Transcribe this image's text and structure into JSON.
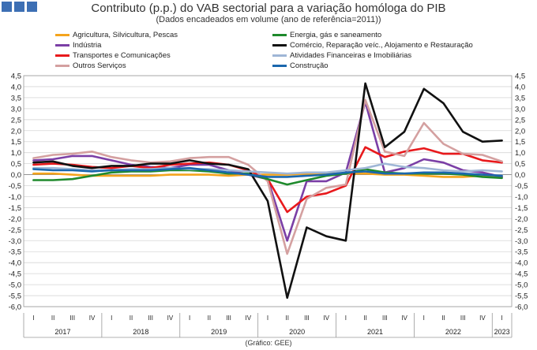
{
  "chart_data": {
    "type": "line",
    "title": "Contributo (p.p.) do VAB sectorial para a variação homóloga do PIB",
    "subtitle": "(Dados encadeados em volume (ano de referência=2011))",
    "source": "(Gráfico: GEE)",
    "ylim": [
      -6.0,
      4.5
    ],
    "yticks": [
      "-6,0",
      "-5,5",
      "-5,0",
      "-4,5",
      "-4,0",
      "-3,5",
      "-3,0",
      "-2,5",
      "-2,0",
      "-1,5",
      "-1,0",
      "-0,5",
      "0,0",
      "0,5",
      "1,0",
      "1,5",
      "2,0",
      "2,5",
      "3,0",
      "3,5",
      "4,0",
      "4,5"
    ],
    "quarters": [
      "I",
      "II",
      "III",
      "IV",
      "I",
      "II",
      "III",
      "IV",
      "I",
      "II",
      "III",
      "IV",
      "I",
      "II",
      "III",
      "IV",
      "I",
      "II",
      "III",
      "IV",
      "I",
      "II",
      "III",
      "IV",
      "I"
    ],
    "years": [
      "2017",
      "2018",
      "2019",
      "2020",
      "2021",
      "2022",
      "2023"
    ],
    "grid": true,
    "series": [
      {
        "name": "Agricultura, Silvicultura, Pescas",
        "color": "#f4a41d",
        "values": [
          0.05,
          0.05,
          0.0,
          -0.05,
          -0.05,
          -0.05,
          -0.05,
          0.0,
          0.0,
          0.0,
          -0.05,
          0.0,
          0.0,
          0.0,
          0.05,
          0.05,
          0.05,
          0.05,
          0.0,
          0.0,
          -0.05,
          -0.1,
          -0.1,
          -0.05,
          -0.1
        ]
      },
      {
        "name": "Indústria",
        "color": "#7b3fa6",
        "values": [
          0.65,
          0.7,
          0.85,
          0.85,
          0.65,
          0.45,
          0.35,
          0.3,
          0.45,
          0.45,
          0.2,
          0.0,
          -0.2,
          -3.0,
          -0.3,
          -0.3,
          0.1,
          3.3,
          0.1,
          0.3,
          0.7,
          0.55,
          0.2,
          0.1,
          -0.1
        ]
      },
      {
        "name": "Transportes e Comunicações",
        "color": "#e8191c",
        "values": [
          0.45,
          0.5,
          0.45,
          0.35,
          0.3,
          0.4,
          0.3,
          0.45,
          0.5,
          0.55,
          0.45,
          0.2,
          -0.2,
          -1.7,
          -1.0,
          -0.85,
          -0.5,
          1.25,
          0.8,
          1.05,
          1.2,
          0.95,
          0.95,
          0.65,
          0.55
        ]
      },
      {
        "name": "Outros Serviços",
        "color": "#d4a0a0",
        "values": [
          0.75,
          0.9,
          0.95,
          1.05,
          0.8,
          0.65,
          0.55,
          0.6,
          0.75,
          0.8,
          0.8,
          0.45,
          -0.3,
          -3.6,
          -1.1,
          -0.6,
          -0.45,
          3.4,
          1.05,
          0.85,
          2.35,
          1.4,
          0.95,
          0.9,
          0.6
        ]
      },
      {
        "name": "Energia, gás e saneamento",
        "color": "#1e8a2c",
        "values": [
          -0.25,
          -0.25,
          -0.2,
          -0.05,
          0.1,
          0.15,
          0.15,
          0.2,
          0.2,
          0.15,
          0.05,
          0.05,
          -0.2,
          -0.45,
          -0.25,
          -0.05,
          0.05,
          0.25,
          0.1,
          0.05,
          0.05,
          0.05,
          0.0,
          -0.1,
          -0.15
        ]
      },
      {
        "name": "Comércio, Reparação veíc., Alojamento e Restauração",
        "color": "#111111",
        "values": [
          0.55,
          0.6,
          0.4,
          0.3,
          0.4,
          0.4,
          0.5,
          0.5,
          0.65,
          0.5,
          0.45,
          0.25,
          -1.2,
          -5.6,
          -2.4,
          -2.8,
          -3.0,
          4.15,
          1.25,
          1.95,
          3.9,
          3.25,
          1.95,
          1.5,
          1.55
        ]
      },
      {
        "name": "Atividades Financeiras e Imobiliárias",
        "color": "#9fb6d6",
        "values": [
          0.3,
          0.3,
          0.25,
          0.2,
          0.2,
          0.25,
          0.25,
          0.3,
          0.25,
          0.25,
          0.2,
          0.15,
          0.1,
          0.05,
          0.1,
          0.1,
          0.2,
          0.3,
          0.5,
          0.35,
          0.3,
          0.2,
          0.15,
          0.2,
          0.15
        ]
      },
      {
        "name": "Construção",
        "color": "#1a67ad",
        "values": [
          0.25,
          0.2,
          0.2,
          0.15,
          0.2,
          0.2,
          0.2,
          0.25,
          0.3,
          0.2,
          0.1,
          0.0,
          -0.1,
          -0.1,
          -0.05,
          0.0,
          0.1,
          0.15,
          0.05,
          0.05,
          0.1,
          0.1,
          0.05,
          0.0,
          -0.05
        ]
      }
    ]
  }
}
